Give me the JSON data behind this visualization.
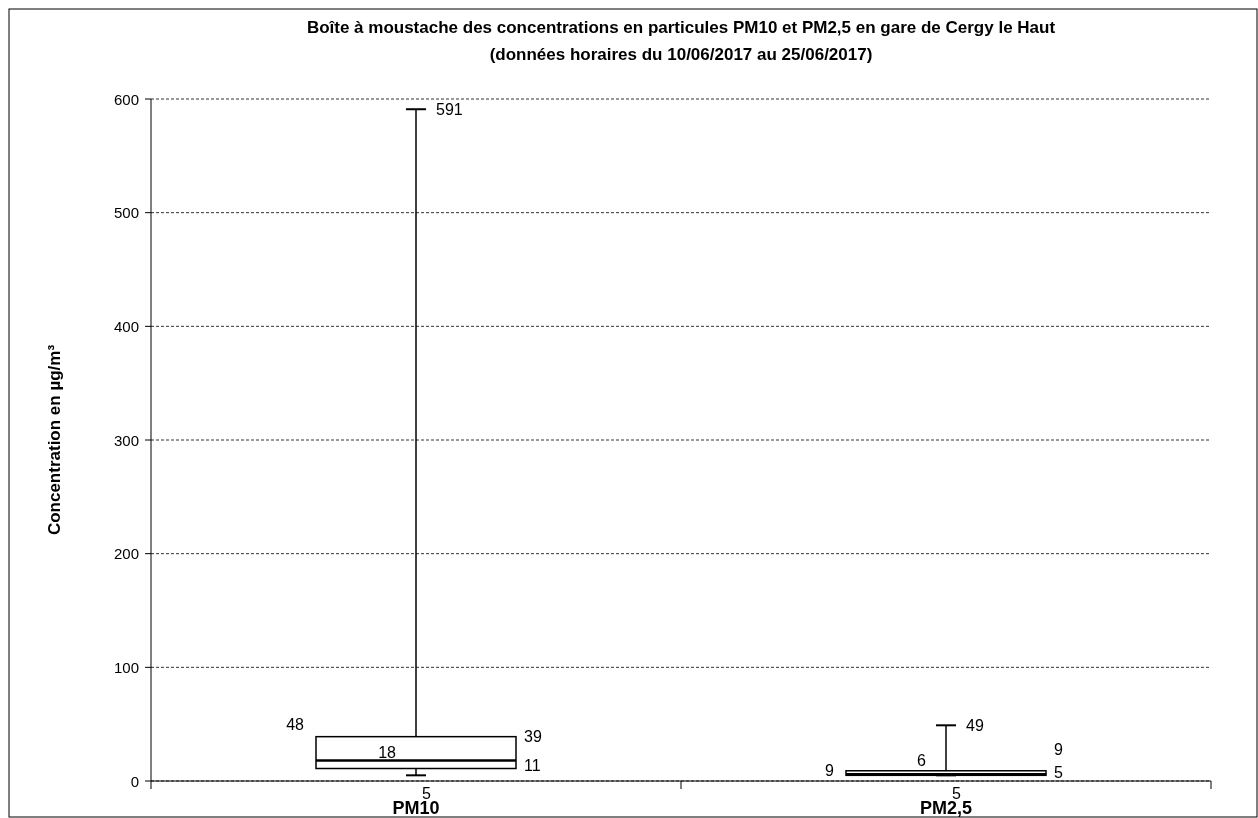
{
  "chart_data": {
    "type": "box",
    "title": "Boîte à moustache des concentrations en particules PM10 et PM2,5 en gare de Cergy le Haut",
    "subtitle": "(données horaires du 10/06/2017 au 25/06/2017)",
    "ylabel": "Concentration en µg/m³",
    "categories": [
      "PM10",
      "PM2,5"
    ],
    "boxes": [
      {
        "low": 5,
        "q1": 11,
        "median": 18,
        "q3": 39,
        "high": 591
      },
      {
        "low": 5,
        "q1": 5,
        "median": 6,
        "q3": 9,
        "high": 49
      }
    ],
    "annotations": [
      {
        "text": "591",
        "x": "PM10",
        "y": 591
      },
      {
        "text": "18",
        "x": "PM10",
        "y": 18
      },
      {
        "text": "5",
        "x": "PM10",
        "y": 5
      },
      {
        "text": "49",
        "x": "PM2,5",
        "y": 49
      },
      {
        "text": "6",
        "x": "PM2,5",
        "y": 6
      },
      {
        "text": "5",
        "x": "PM2,5",
        "y": 5
      },
      "39",
      "11",
      "48",
      "9",
      "9",
      "5"
    ],
    "ylim": [
      0,
      600
    ],
    "yticks": [
      0,
      100,
      200,
      300,
      400,
      500,
      600
    ],
    "grid": "y"
  }
}
